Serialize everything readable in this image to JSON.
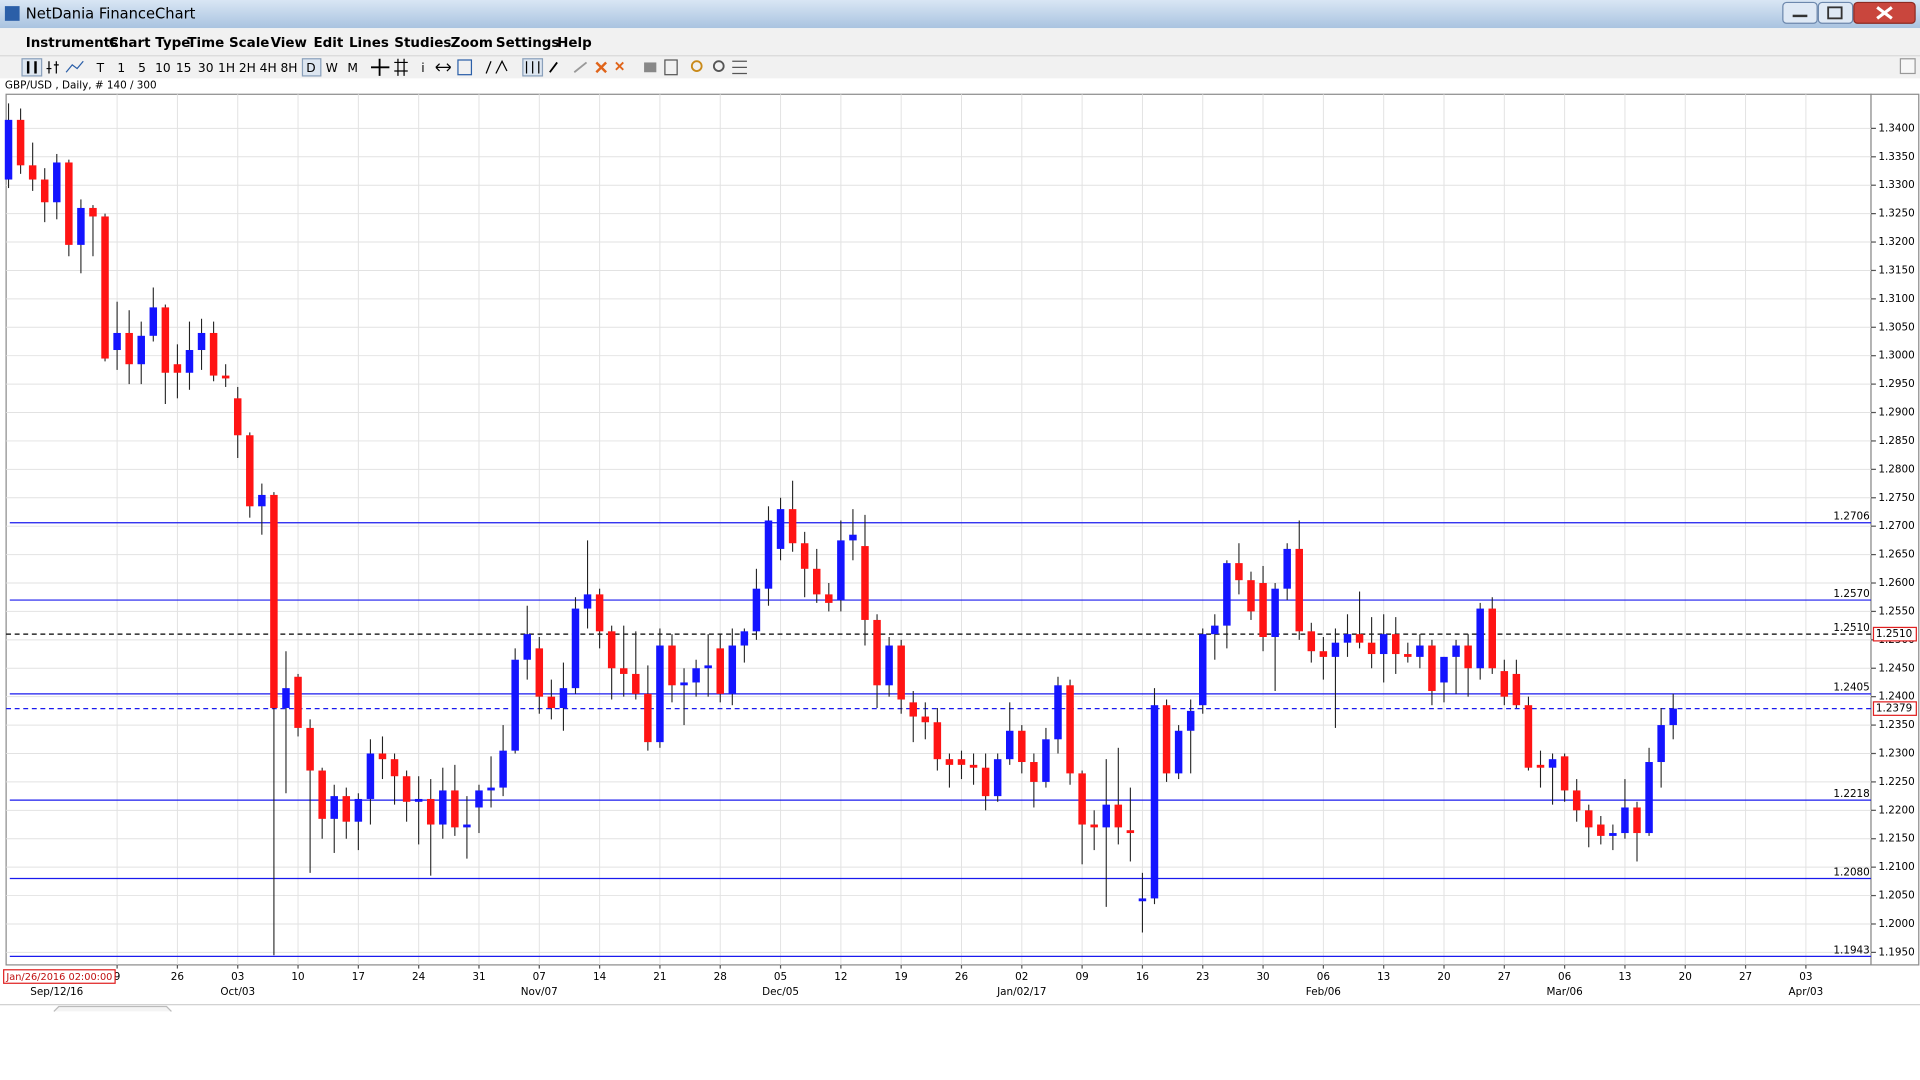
{
  "window": {
    "title": "NetDania FinanceChart"
  },
  "menu": [
    "Instruments",
    "Chart Type",
    "Time Scale",
    "View",
    "Edit",
    "Lines",
    "Studies",
    "Zoom",
    "Settings",
    "Help"
  ],
  "toolbar": [
    "T",
    "1",
    "5",
    "10",
    "15",
    "30",
    "1H",
    "2H",
    "4H",
    "8H",
    "D",
    "W",
    "M"
  ],
  "chart_header": "GBP/USD , Daily, # 140 / 300",
  "crosshair_label": "Jan/26/2016 02:00:00",
  "chart_data": {
    "type": "candlestick",
    "up_color": "#1414ff",
    "down_color": "#ff1414",
    "open": [
      1.331,
      1.3415,
      1.3335,
      1.331,
      1.327,
      1.334,
      1.3195,
      1.326,
      1.3245,
      1.301,
      1.304,
      1.2985,
      1.3035,
      1.3085,
      1.2985,
      1.297,
      1.301,
      1.304,
      1.2965,
      1.2925,
      1.286,
      1.2735,
      1.2755,
      1.238,
      1.2435,
      1.2345,
      1.227,
      1.2185,
      1.2225,
      1.218,
      1.222,
      1.23,
      1.229,
      1.226,
      1.2215,
      1.222,
      1.2175,
      1.2235,
      1.217,
      1.2205,
      1.2235,
      1.224,
      1.2305,
      1.2465,
      1.2485,
      1.24,
      1.238,
      1.2415,
      1.2555,
      1.258,
      1.2515,
      1.245,
      1.244,
      1.2405,
      1.232,
      1.249,
      1.242,
      1.2425,
      1.245,
      1.2485,
      1.2405,
      1.249,
      1.2515,
      1.259,
      1.266,
      1.273,
      1.267,
      1.2625,
      1.258,
      1.257,
      1.2675,
      1.2665,
      1.2535,
      1.242,
      1.249,
      1.239,
      1.2365,
      1.2355,
      1.229,
      1.229,
      1.228,
      1.2275,
      1.2225,
      1.229,
      1.234,
      1.2285,
      1.225,
      1.2325,
      1.242,
      1.2265,
      1.2175,
      1.217,
      1.221,
      1.2165,
      1.204,
      1.2045,
      1.2385,
      1.2265,
      1.234,
      1.2385,
      1.251,
      1.2525,
      1.2635,
      1.2605,
      1.26,
      1.2505,
      1.259,
      1.266,
      1.2515,
      1.248,
      1.247,
      1.2495,
      1.251,
      1.2495,
      1.2475,
      1.251,
      1.2475,
      1.247,
      1.249,
      1.2425,
      1.247,
      1.249,
      1.245,
      1.2555,
      1.2445,
      1.244,
      1.2385,
      1.228,
      1.2275,
      1.2295,
      1.2235,
      1.22,
      1.2175,
      1.2155,
      1.216,
      1.2205,
      1.216,
      1.2285,
      1.235
    ],
    "high": [
      1.3444,
      1.3435,
      1.3375,
      1.333,
      1.3355,
      1.3345,
      1.3275,
      1.3265,
      1.325,
      1.3095,
      1.308,
      1.306,
      1.312,
      1.309,
      1.302,
      1.306,
      1.3065,
      1.306,
      1.2985,
      1.2945,
      1.2865,
      1.2775,
      1.276,
      1.248,
      1.244,
      1.236,
      1.2275,
      1.2245,
      1.224,
      1.223,
      1.2325,
      1.233,
      1.23,
      1.227,
      1.226,
      1.2255,
      1.2275,
      1.228,
      1.2225,
      1.2245,
      1.2295,
      1.235,
      1.2485,
      1.256,
      1.2505,
      1.243,
      1.246,
      1.2575,
      1.2675,
      1.259,
      1.2525,
      1.2525,
      1.2515,
      1.2455,
      1.252,
      1.251,
      1.245,
      1.2465,
      1.251,
      1.251,
      1.252,
      1.252,
      1.2625,
      1.2735,
      1.275,
      1.278,
      1.269,
      1.266,
      1.26,
      1.271,
      1.273,
      1.272,
      1.2545,
      1.2505,
      1.25,
      1.241,
      1.239,
      1.238,
      1.23,
      1.2305,
      1.23,
      1.23,
      1.23,
      1.239,
      1.235,
      1.23,
      1.2345,
      1.2435,
      1.243,
      1.227,
      1.22,
      1.229,
      1.231,
      1.224,
      1.209,
      1.2415,
      1.2395,
      1.235,
      1.2395,
      1.252,
      1.2545,
      1.264,
      1.267,
      1.262,
      1.263,
      1.26,
      1.267,
      1.271,
      1.253,
      1.2505,
      1.252,
      1.2545,
      1.2585,
      1.254,
      1.2545,
      1.254,
      1.2495,
      1.251,
      1.25,
      1.247,
      1.25,
      1.251,
      1.2565,
      1.2575,
      1.2465,
      1.2465,
      1.24,
      1.2305,
      1.23,
      1.23,
      1.2255,
      1.221,
      1.219,
      1.2175,
      1.2255,
      1.2215,
      1.231,
      1.238,
      1.2405
    ],
    "low": [
      1.3295,
      1.332,
      1.329,
      1.3235,
      1.324,
      1.3175,
      1.3145,
      1.3175,
      1.299,
      1.2975,
      1.295,
      1.295,
      1.3025,
      1.2915,
      1.2925,
      1.294,
      1.2975,
      1.2955,
      1.2945,
      1.282,
      1.2715,
      1.2685,
      1.1945,
      1.223,
      1.233,
      1.209,
      1.215,
      1.2125,
      1.215,
      1.213,
      1.2175,
      1.2255,
      1.221,
      1.218,
      1.214,
      1.2085,
      1.215,
      1.2155,
      1.2115,
      1.216,
      1.2205,
      1.2225,
      1.23,
      1.243,
      1.237,
      1.236,
      1.234,
      1.2405,
      1.252,
      1.2485,
      1.2395,
      1.24,
      1.2395,
      1.2305,
      1.231,
      1.239,
      1.235,
      1.24,
      1.24,
      1.239,
      1.2385,
      1.246,
      1.25,
      1.256,
      1.264,
      1.2655,
      1.2575,
      1.2565,
      1.255,
      1.255,
      1.264,
      1.249,
      1.238,
      1.24,
      1.237,
      1.232,
      1.2325,
      1.227,
      1.224,
      1.2255,
      1.2245,
      1.22,
      1.2215,
      1.228,
      1.2265,
      1.2205,
      1.224,
      1.23,
      1.2245,
      1.2105,
      1.213,
      1.203,
      1.214,
      1.211,
      1.1985,
      1.2035,
      1.225,
      1.2255,
      1.2265,
      1.237,
      1.2465,
      1.2485,
      1.258,
      1.2535,
      1.248,
      1.241,
      1.257,
      1.25,
      1.246,
      1.243,
      1.2345,
      1.247,
      1.2485,
      1.245,
      1.2425,
      1.244,
      1.246,
      1.245,
      1.2385,
      1.239,
      1.2405,
      1.24,
      1.243,
      1.244,
      1.2385,
      1.238,
      1.227,
      1.224,
      1.221,
      1.2215,
      1.218,
      1.2135,
      1.214,
      1.213,
      1.215,
      1.211,
      1.2155,
      1.224,
      1.2325
    ],
    "close": [
      1.3415,
      1.3335,
      1.331,
      1.327,
      1.334,
      1.3195,
      1.326,
      1.3245,
      1.2995,
      1.304,
      1.2985,
      1.3035,
      1.3085,
      1.297,
      1.297,
      1.301,
      1.304,
      1.2965,
      1.296,
      1.286,
      1.2735,
      1.2755,
      1.238,
      1.2415,
      1.2345,
      1.227,
      1.2185,
      1.2225,
      1.218,
      1.222,
      1.23,
      1.229,
      1.226,
      1.2215,
      1.222,
      1.2175,
      1.2235,
      1.217,
      1.2175,
      1.2235,
      1.224,
      1.2305,
      1.2465,
      1.251,
      1.24,
      1.238,
      1.2415,
      1.2555,
      1.258,
      1.2515,
      1.245,
      1.244,
      1.2405,
      1.232,
      1.249,
      1.242,
      1.2425,
      1.245,
      1.2455,
      1.2405,
      1.249,
      1.2515,
      1.259,
      1.271,
      1.273,
      1.267,
      1.2625,
      1.258,
      1.2565,
      1.2675,
      1.2685,
      1.2535,
      1.242,
      1.249,
      1.2395,
      1.2365,
      1.2355,
      1.229,
      1.228,
      1.228,
      1.2275,
      1.2225,
      1.229,
      1.234,
      1.2285,
      1.225,
      1.2325,
      1.242,
      1.2265,
      1.2175,
      1.217,
      1.221,
      1.217,
      1.216,
      1.2045,
      1.2385,
      1.2265,
      1.234,
      1.2375,
      1.251,
      1.2525,
      1.2635,
      1.2605,
      1.255,
      1.2505,
      1.259,
      1.266,
      1.2515,
      1.248,
      1.247,
      1.2495,
      1.251,
      1.2495,
      1.2475,
      1.251,
      1.2475,
      1.247,
      1.249,
      1.241,
      1.247,
      1.249,
      1.245,
      1.2555,
      1.245,
      1.24,
      1.2385,
      1.2275,
      1.2275,
      1.229,
      1.2235,
      1.22,
      1.217,
      1.2155,
      1.216,
      1.2205,
      1.216,
      1.2285,
      1.235,
      1.2379
    ],
    "xlim": [
      -0.2,
      154.4
    ],
    "ylim": [
      1.1928,
      1.346
    ],
    "grid": true,
    "yticks": [
      {
        "value": 1.195,
        "label": "1.1950"
      },
      {
        "value": 1.2,
        "label": "1.2000"
      },
      {
        "value": 1.205,
        "label": "1.2050"
      },
      {
        "value": 1.21,
        "label": "1.2100"
      },
      {
        "value": 1.215,
        "label": "1.2150"
      },
      {
        "value": 1.22,
        "label": "1.2200"
      },
      {
        "value": 1.225,
        "label": "1.2250"
      },
      {
        "value": 1.23,
        "label": "1.2300"
      },
      {
        "value": 1.235,
        "label": "1.2350"
      },
      {
        "value": 1.24,
        "label": "1.2400"
      },
      {
        "value": 1.245,
        "label": "1.2450"
      },
      {
        "value": 1.25,
        "label": "1.2500"
      },
      {
        "value": 1.255,
        "label": "1.2550"
      },
      {
        "value": 1.26,
        "label": "1.2600"
      },
      {
        "value": 1.265,
        "label": "1.2650"
      },
      {
        "value": 1.27,
        "label": "1.2700"
      },
      {
        "value": 1.275,
        "label": "1.2750"
      },
      {
        "value": 1.28,
        "label": "1.2800"
      },
      {
        "value": 1.285,
        "label": "1.2850"
      },
      {
        "value": 1.29,
        "label": "1.2900"
      },
      {
        "value": 1.295,
        "label": "1.2950"
      },
      {
        "value": 1.3,
        "label": "1.3000"
      },
      {
        "value": 1.305,
        "label": "1.3050"
      },
      {
        "value": 1.31,
        "label": "1.3100"
      },
      {
        "value": 1.315,
        "label": "1.3150"
      },
      {
        "value": 1.32,
        "label": "1.3200"
      },
      {
        "value": 1.325,
        "label": "1.3250"
      },
      {
        "value": 1.33,
        "label": "1.3300"
      },
      {
        "value": 1.335,
        "label": "1.3350"
      },
      {
        "value": 1.34,
        "label": "1.3400"
      }
    ],
    "xticks": [
      {
        "value": 9,
        "label": "9"
      },
      {
        "value": 14,
        "label": "26"
      },
      {
        "value": 19,
        "label": "03"
      },
      {
        "value": 24,
        "label": "10"
      },
      {
        "value": 29,
        "label": "17"
      },
      {
        "value": 34,
        "label": "24"
      },
      {
        "value": 39,
        "label": "31"
      },
      {
        "value": 44,
        "label": "07"
      },
      {
        "value": 49,
        "label": "14"
      },
      {
        "value": 54,
        "label": "21"
      },
      {
        "value": 59,
        "label": "28"
      },
      {
        "value": 64,
        "label": "05"
      },
      {
        "value": 69,
        "label": "12"
      },
      {
        "value": 74,
        "label": "19"
      },
      {
        "value": 79,
        "label": "26"
      },
      {
        "value": 84,
        "label": "02"
      },
      {
        "value": 89,
        "label": "09"
      },
      {
        "value": 94,
        "label": "16"
      },
      {
        "value": 99,
        "label": "23"
      },
      {
        "value": 104,
        "label": "30"
      },
      {
        "value": 109,
        "label": "06"
      },
      {
        "value": 114,
        "label": "13"
      },
      {
        "value": 119,
        "label": "20"
      },
      {
        "value": 124,
        "label": "27"
      },
      {
        "value": 129,
        "label": "06"
      },
      {
        "value": 134,
        "label": "13"
      },
      {
        "value": 139,
        "label": "20"
      },
      {
        "value": 144,
        "label": "27"
      },
      {
        "value": 149,
        "label": "03"
      }
    ],
    "xticks_major": [
      {
        "value": 4,
        "label": "Sep/12/16"
      },
      {
        "value": 19,
        "label": "Oct/03"
      },
      {
        "value": 44,
        "label": "Nov/07"
      },
      {
        "value": 64,
        "label": "Dec/05"
      },
      {
        "value": 84,
        "label": "Jan/02/17"
      },
      {
        "value": 109,
        "label": "Feb/06"
      },
      {
        "value": 129,
        "label": "Mar/06"
      },
      {
        "value": 149,
        "label": "Apr/03"
      }
    ],
    "hlines_color": "#1a1aee",
    "hlines": [
      {
        "value": 1.2706,
        "label": "1.2706"
      },
      {
        "value": 1.257,
        "label": "1.2570"
      },
      {
        "value": 1.2405,
        "label": "1.2405"
      },
      {
        "value": 1.2218,
        "label": "1.2218"
      },
      {
        "value": 1.208,
        "label": "1.2080"
      },
      {
        "value": 1.1943,
        "label": "1.1943"
      }
    ],
    "ref_lines": [
      {
        "value": 1.251,
        "label": "1.2510",
        "color": "#000000"
      },
      {
        "value": 1.2379,
        "label": "1.2379",
        "color": "#1a1aee"
      }
    ]
  }
}
